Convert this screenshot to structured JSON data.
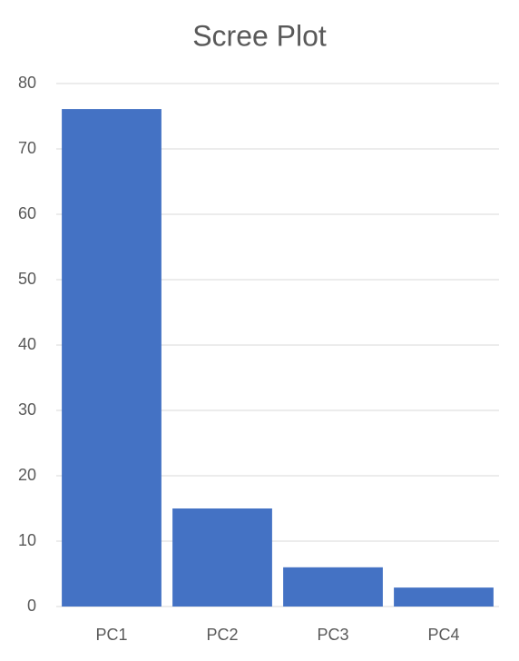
{
  "chart_data": {
    "type": "bar",
    "title": "Scree Plot",
    "categories": [
      "PC1",
      "PC2",
      "PC3",
      "PC4"
    ],
    "values": [
      76.1,
      15,
      6,
      2.9
    ],
    "color": "#4472c4",
    "ylim": [
      0,
      80
    ],
    "yticks": [
      0,
      10,
      20,
      30,
      40,
      50,
      60,
      70,
      80
    ],
    "grid": true
  }
}
